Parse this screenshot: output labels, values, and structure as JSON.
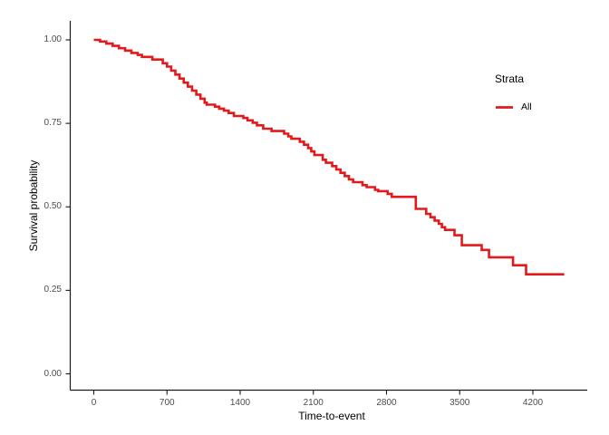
{
  "chart_data": {
    "type": "line",
    "variant": "kaplan-meier-step-curve",
    "title": "",
    "xlabel": "Time-to-event",
    "ylabel": "Survival probability",
    "grid": false,
    "background": "#ffffff",
    "xlim": [
      0,
      4500
    ],
    "ylim": [
      0,
      1
    ],
    "xticks": [
      {
        "value": 0,
        "label": "0"
      },
      {
        "value": 700,
        "label": "700"
      },
      {
        "value": 1400,
        "label": "1400"
      },
      {
        "value": 2100,
        "label": "2100"
      },
      {
        "value": 2800,
        "label": "2800"
      },
      {
        "value": 3500,
        "label": "3500"
      },
      {
        "value": 4200,
        "label": "4200"
      }
    ],
    "yticks": [
      {
        "value": 1.0,
        "label": "1.00"
      },
      {
        "value": 0.75,
        "label": "0.75"
      },
      {
        "value": 0.5,
        "label": "0.50"
      },
      {
        "value": 0.25,
        "label": "0.25"
      },
      {
        "value": 0.0,
        "label": "0.00"
      }
    ],
    "legend": {
      "title": "Strata",
      "position": "right",
      "entries": [
        {
          "label": "All",
          "color": "#e31a1c"
        }
      ]
    },
    "series": [
      {
        "name": "All",
        "color": "#e31a1c",
        "step": "hv",
        "points": [
          [
            0,
            1.0
          ],
          [
            60,
            0.995
          ],
          [
            120,
            0.989
          ],
          [
            180,
            0.982
          ],
          [
            240,
            0.975
          ],
          [
            300,
            0.968
          ],
          [
            360,
            0.961
          ],
          [
            420,
            0.955
          ],
          [
            460,
            0.949
          ],
          [
            560,
            0.941
          ],
          [
            660,
            0.93
          ],
          [
            700,
            0.92
          ],
          [
            740,
            0.908
          ],
          [
            780,
            0.896
          ],
          [
            820,
            0.884
          ],
          [
            860,
            0.872
          ],
          [
            900,
            0.86
          ],
          [
            940,
            0.848
          ],
          [
            980,
            0.836
          ],
          [
            1020,
            0.824
          ],
          [
            1060,
            0.812
          ],
          [
            1080,
            0.806
          ],
          [
            1160,
            0.8
          ],
          [
            1200,
            0.794
          ],
          [
            1245,
            0.788
          ],
          [
            1290,
            0.781
          ],
          [
            1340,
            0.772
          ],
          [
            1430,
            0.766
          ],
          [
            1470,
            0.759
          ],
          [
            1520,
            0.752
          ],
          [
            1560,
            0.744
          ],
          [
            1620,
            0.734
          ],
          [
            1700,
            0.727
          ],
          [
            1820,
            0.719
          ],
          [
            1860,
            0.711
          ],
          [
            1890,
            0.704
          ],
          [
            1970,
            0.695
          ],
          [
            2010,
            0.686
          ],
          [
            2050,
            0.676
          ],
          [
            2080,
            0.666
          ],
          [
            2110,
            0.655
          ],
          [
            2190,
            0.641
          ],
          [
            2220,
            0.632
          ],
          [
            2280,
            0.622
          ],
          [
            2320,
            0.612
          ],
          [
            2360,
            0.602
          ],
          [
            2400,
            0.592
          ],
          [
            2440,
            0.582
          ],
          [
            2480,
            0.574
          ],
          [
            2570,
            0.565
          ],
          [
            2610,
            0.559
          ],
          [
            2690,
            0.551
          ],
          [
            2720,
            0.547
          ],
          [
            2810,
            0.539
          ],
          [
            2850,
            0.53
          ],
          [
            3080,
            0.494
          ],
          [
            3180,
            0.479
          ],
          [
            3220,
            0.469
          ],
          [
            3260,
            0.459
          ],
          [
            3300,
            0.449
          ],
          [
            3330,
            0.439
          ],
          [
            3360,
            0.431
          ],
          [
            3450,
            0.415
          ],
          [
            3520,
            0.385
          ],
          [
            3710,
            0.371
          ],
          [
            3780,
            0.349
          ],
          [
            4010,
            0.325
          ],
          [
            4135,
            0.298
          ],
          [
            4500,
            0.298
          ]
        ]
      }
    ],
    "axis_color": "#1a1a1a",
    "tick_label_color": "#4d4d4d"
  }
}
